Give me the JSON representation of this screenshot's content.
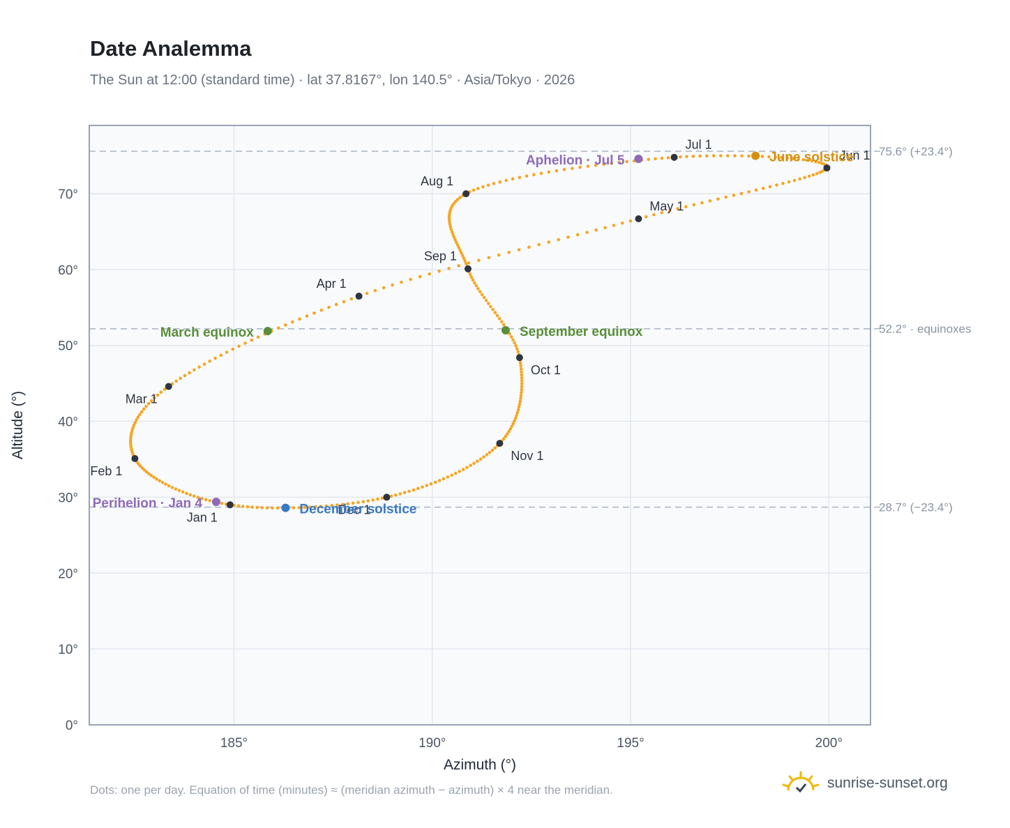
{
  "header": {
    "title": "Date Analemma",
    "subtitle": "The Sun at 12:00 (standard time) · lat 37.8167°, lon 140.5° · Asia/Tokyo · 2026"
  },
  "footer": {
    "note": "Dots: one per day. Equation of time (minutes) ≈ (meridian azimuth − azimuth) × 4 near the meridian.",
    "brand": "sunrise-sunset.org"
  },
  "chart_data": {
    "type": "scatter",
    "xlabel": "Azimuth (°)",
    "ylabel": "Altitude (°)",
    "xlim": [
      181.35,
      201.05
    ],
    "ylim": [
      0,
      79
    ],
    "x_ticks": [
      185,
      190,
      195,
      200
    ],
    "x_tick_labels": [
      "185°",
      "190°",
      "195°",
      "200°"
    ],
    "y_ticks": [
      0,
      10,
      20,
      30,
      40,
      50,
      60,
      70
    ],
    "y_tick_labels": [
      "0°",
      "10°",
      "20°",
      "30°",
      "40°",
      "50°",
      "60°",
      "70°"
    ],
    "grid": true,
    "reference_lines": [
      {
        "y": 75.6,
        "label": "75.6° (+23.4°)"
      },
      {
        "y": 52.2,
        "label": "52.2° · equinoxes"
      },
      {
        "y": 28.7,
        "label": "28.7° (−23.4°)"
      }
    ],
    "month_markers": [
      {
        "label": "Jan 1",
        "x": 184.9,
        "y": 29.0
      },
      {
        "label": "Feb 1",
        "x": 182.5,
        "y": 35.1
      },
      {
        "label": "Mar 1",
        "x": 183.35,
        "y": 44.6
      },
      {
        "label": "Apr 1",
        "x": 188.15,
        "y": 56.5
      },
      {
        "label": "May 1",
        "x": 195.2,
        "y": 66.7
      },
      {
        "label": "Jun 1",
        "x": 199.95,
        "y": 73.4
      },
      {
        "label": "Jul 1",
        "x": 196.1,
        "y": 74.8
      },
      {
        "label": "Aug 1",
        "x": 190.85,
        "y": 70.0
      },
      {
        "label": "Sep 1",
        "x": 190.9,
        "y": 60.1
      },
      {
        "label": "Oct 1",
        "x": 192.2,
        "y": 48.4
      },
      {
        "label": "Nov 1",
        "x": 191.7,
        "y": 37.1
      },
      {
        "label": "Dec 1",
        "x": 188.85,
        "y": 30.0
      }
    ],
    "events": [
      {
        "label": "Perihelion · Jan 4",
        "x": 184.55,
        "y": 29.4,
        "color": "#8e6ab8"
      },
      {
        "label": "Aphelion · Jul 5",
        "x": 195.2,
        "y": 74.6,
        "color": "#8e6ab8"
      },
      {
        "label": "March equinox",
        "x": 185.85,
        "y": 51.9,
        "color": "#5a8f3a"
      },
      {
        "label": "June solstice",
        "x": 198.15,
        "y": 75.0,
        "color": "#d4900f"
      },
      {
        "label": "September equinox",
        "x": 191.85,
        "y": 52.0,
        "color": "#5a8f3a"
      },
      {
        "label": "December solstice",
        "x": 186.3,
        "y": 28.6,
        "color": "#3a78c2"
      }
    ],
    "series": [
      {
        "color": "#f5a623",
        "points_per": "day",
        "year": 2026
      }
    ]
  },
  "colors": {
    "curve": "#f5a623",
    "month_marker": "#2f3540",
    "plot_bg": "#f8fafc",
    "axis_frame": "#9aa3b2",
    "grid": "#e3e8ee",
    "ref_line": "#aab4c2"
  },
  "icons": {
    "brand": "sun-logo-icon"
  }
}
